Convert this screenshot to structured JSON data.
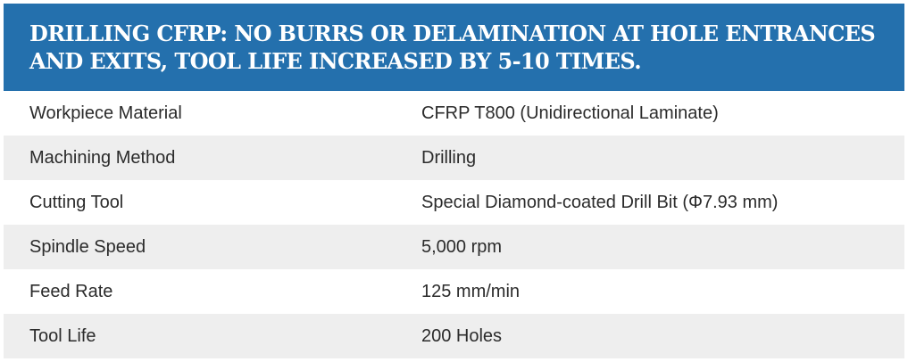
{
  "header": {
    "title": "DRILLING CFRP: NO BURRS OR DELAMINATION AT HOLE ENTRANCES AND EXITS, TOOL LIFE INCREASED BY 5-10 TIMES."
  },
  "colors": {
    "header_background": "#2470ad",
    "header_text": "#ffffff",
    "row_alt_background": "#eeeeee"
  },
  "specs": [
    {
      "label": "Workpiece Material",
      "value": "CFRP T800 (Unidirectional Laminate)"
    },
    {
      "label": "Machining Method",
      "value": "Drilling"
    },
    {
      "label": "Cutting Tool",
      "value": "Special Diamond-coated Drill Bit (Φ7.93 mm)"
    },
    {
      "label": "Spindle Speed",
      "value": "5,000 rpm"
    },
    {
      "label": "Feed Rate",
      "value": "125 mm/min"
    },
    {
      "label": "Tool Life",
      "value": "200 Holes"
    }
  ]
}
